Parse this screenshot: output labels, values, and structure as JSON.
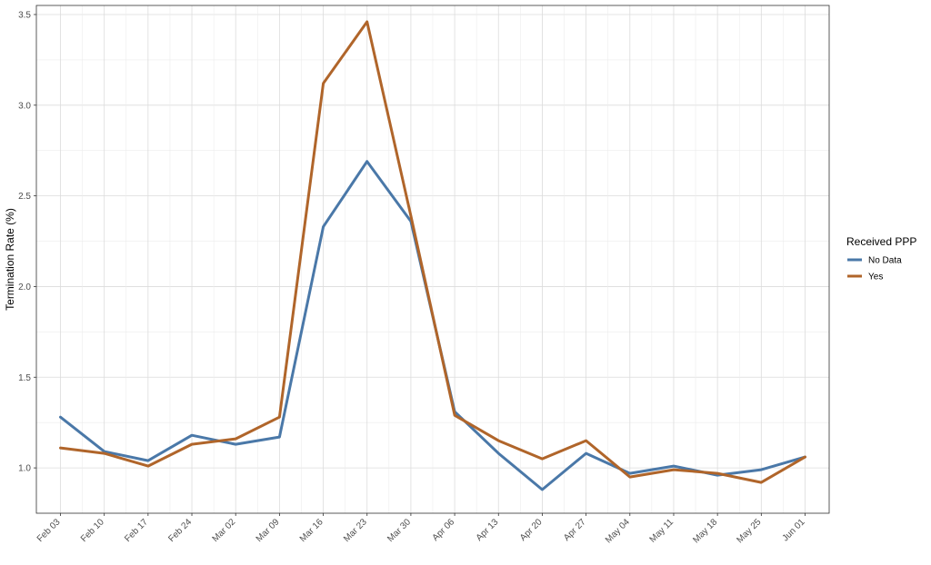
{
  "chart_data": {
    "type": "line",
    "title": "",
    "xlabel": "",
    "ylabel": "Termination Rate (%)",
    "ylim": [
      0.75,
      3.55
    ],
    "y_ticks": [
      1.0,
      1.5,
      2.0,
      2.5,
      3.0,
      3.5
    ],
    "y_tick_labels": [
      "1.0",
      "1.5",
      "2.0",
      "2.5",
      "3.0",
      "3.5"
    ],
    "categories": [
      "Feb 03",
      "Feb 10",
      "Feb 17",
      "Feb 24",
      "Mar 02",
      "Mar 09",
      "Mar 16",
      "Mar 23",
      "Mar 30",
      "Apr 06",
      "Apr 13",
      "Apr 20",
      "Apr 27",
      "May 04",
      "May 11",
      "May 18",
      "May 25",
      "Jun 01"
    ],
    "grid": true,
    "legend": {
      "title": "Received PPP",
      "position": "right"
    },
    "series": [
      {
        "name": "No Data",
        "color": "#4a78a8",
        "values": [
          1.28,
          1.09,
          1.04,
          1.18,
          1.13,
          1.17,
          2.33,
          2.69,
          2.36,
          1.31,
          1.08,
          0.88,
          1.08,
          0.97,
          1.01,
          0.96,
          0.99,
          1.06
        ]
      },
      {
        "name": "Yes",
        "color": "#b0652a",
        "values": [
          1.11,
          1.08,
          1.01,
          1.13,
          1.16,
          1.28,
          3.12,
          3.46,
          2.39,
          1.29,
          1.15,
          1.05,
          1.15,
          0.95,
          0.99,
          0.97,
          0.92,
          1.06
        ]
      }
    ]
  }
}
